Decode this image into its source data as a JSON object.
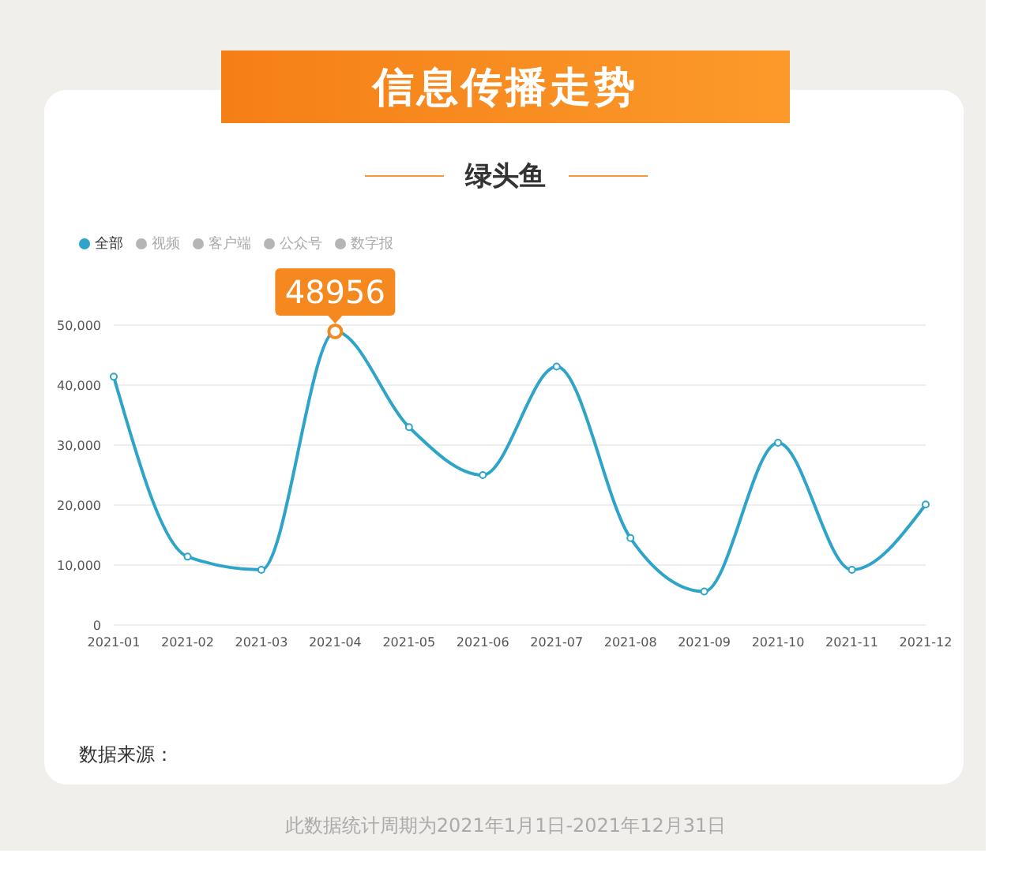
{
  "chart_data": {
    "type": "line",
    "title": "信息传播走势",
    "subtitle": "绿头鱼",
    "categories": [
      "2021-01",
      "2021-02",
      "2021-03",
      "2021-04",
      "2021-05",
      "2021-06",
      "2021-07",
      "2021-08",
      "2021-09",
      "2021-10",
      "2021-11",
      "2021-12"
    ],
    "series": [
      {
        "name": "全部",
        "color": "#2fa4c9",
        "values": [
          41400,
          11400,
          9200,
          48956,
          33000,
          25000,
          43100,
          14500,
          5600,
          30400,
          9200,
          20100
        ]
      },
      {
        "name": "视频",
        "color": "#b5b5b5",
        "values": [
          null,
          null,
          null,
          null,
          null,
          null,
          null,
          null,
          null,
          null,
          null,
          null
        ]
      },
      {
        "name": "客户端",
        "color": "#b5b5b5",
        "values": [
          null,
          null,
          null,
          null,
          null,
          null,
          null,
          null,
          null,
          null,
          null,
          null
        ]
      },
      {
        "name": "公众号",
        "color": "#b5b5b5",
        "values": [
          null,
          null,
          null,
          null,
          null,
          null,
          null,
          null,
          null,
          null,
          null,
          null
        ]
      },
      {
        "name": "数字报",
        "color": "#b5b5b5",
        "values": [
          null,
          null,
          null,
          null,
          null,
          null,
          null,
          null,
          null,
          null,
          null,
          null
        ]
      }
    ],
    "ylim": [
      0,
      50000
    ],
    "yticks": [
      0,
      {
        "value": 10000,
        "label": "10,000"
      },
      {
        "value": 20000,
        "label": "20,000"
      },
      {
        "value": 30000,
        "label": "30,000"
      },
      {
        "value": 40000,
        "label": "40,000"
      },
      {
        "value": 50000,
        "label": "50,000"
      }
    ],
    "grid": "y",
    "legend": "top left",
    "marker": "circle",
    "line_style": "solid",
    "annotations": [
      {
        "text": "48956",
        "x": "2021-04",
        "y": 48956
      },
      "数据来源：",
      "此数据统计周期为2021年1月1日-2021年12月31日"
    ]
  }
}
